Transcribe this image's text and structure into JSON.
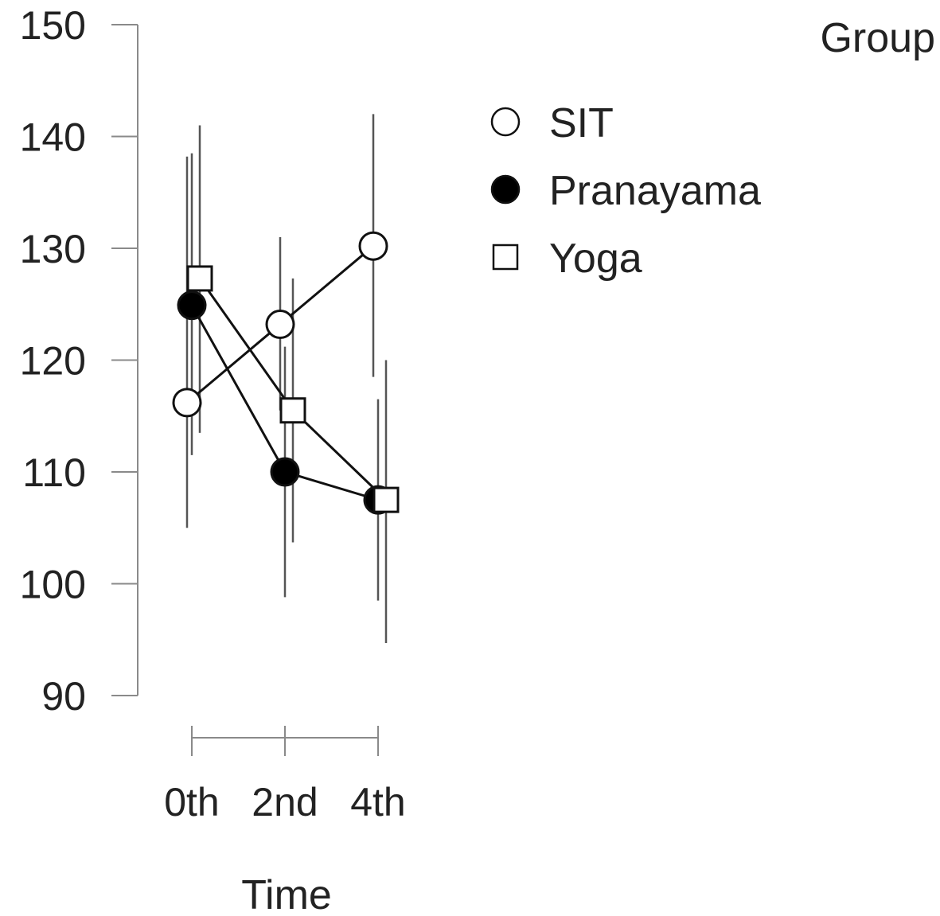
{
  "chart_data": {
    "type": "line",
    "title": "",
    "xlabel": "Time",
    "ylabel": "",
    "categories": [
      "0th",
      "2nd",
      "4th"
    ],
    "ylim": [
      90,
      150
    ],
    "yticks": [
      90,
      100,
      110,
      120,
      130,
      140,
      150
    ],
    "grid": false,
    "error_bars": true,
    "legend": {
      "title": "Group",
      "position": "top-right"
    },
    "series": [
      {
        "name": "SIT",
        "marker": "circle-open",
        "values": [
          116.2,
          123.2,
          130.2
        ],
        "err_low": [
          105.0,
          115.5,
          118.5
        ],
        "err_high": [
          138.2,
          131.0,
          142.0
        ]
      },
      {
        "name": "Pranayama",
        "marker": "circle-filled",
        "values": [
          124.9,
          110.0,
          107.5
        ],
        "err_low": [
          111.5,
          98.8,
          98.5
        ],
        "err_high": [
          138.5,
          121.2,
          116.5
        ]
      },
      {
        "name": "Yoga",
        "marker": "square-open",
        "values": [
          127.3,
          115.5,
          107.5
        ],
        "err_low": [
          113.5,
          103.7,
          94.7
        ],
        "err_high": [
          141.0,
          127.3,
          120.0
        ]
      }
    ]
  }
}
